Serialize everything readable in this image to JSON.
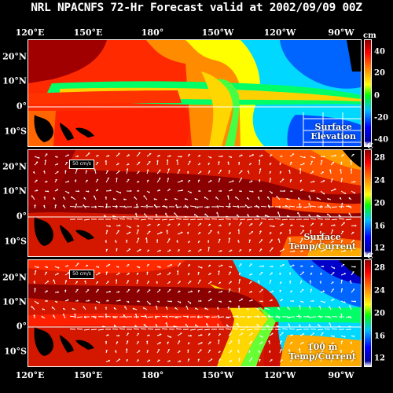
{
  "title": "NRL NPACNFS 72-Hr Forecast valid at 2002/09/09 00Z",
  "longitude_labels": [
    "120°E",
    "150°E",
    "180°",
    "150°W",
    "120°W",
    "90°W"
  ],
  "latitude_labels": [
    "20°N",
    "10°N",
    "0°",
    "10°S"
  ],
  "panels": [
    {
      "label_line1": "Surface",
      "label_line2": "Elevation",
      "unit": "cm",
      "colorbar_ticks": [
        "40",
        "20",
        "0",
        "-20",
        "-40"
      ],
      "colorbar_range": [
        -40,
        50
      ],
      "current_vectors": false
    },
    {
      "label_line1": "Surface",
      "label_line2": "Temp/Current",
      "unit": "°C",
      "colorbar_ticks": [
        "28",
        "24",
        "20",
        "16",
        "12"
      ],
      "colorbar_range": [
        10,
        30
      ],
      "current_vectors": true,
      "reference_vector": "50 cm/s"
    },
    {
      "label_line1": "100 m",
      "label_line2": "Temp/Current",
      "unit": "°C",
      "colorbar_ticks": [
        "28",
        "24",
        "20",
        "16",
        "12"
      ],
      "colorbar_range": [
        10,
        30
      ],
      "current_vectors": true,
      "reference_vector": "50 cm/s"
    }
  ],
  "colors": {
    "background": "#000000",
    "land": "#000000",
    "foreground": "#ffffff",
    "colorbar_scale": [
      "#8b0000",
      "#ff0000",
      "#ff8c00",
      "#ffff00",
      "#00ff00",
      "#00bfff",
      "#0000ff",
      "#0000a0",
      "#ffffff"
    ]
  }
}
